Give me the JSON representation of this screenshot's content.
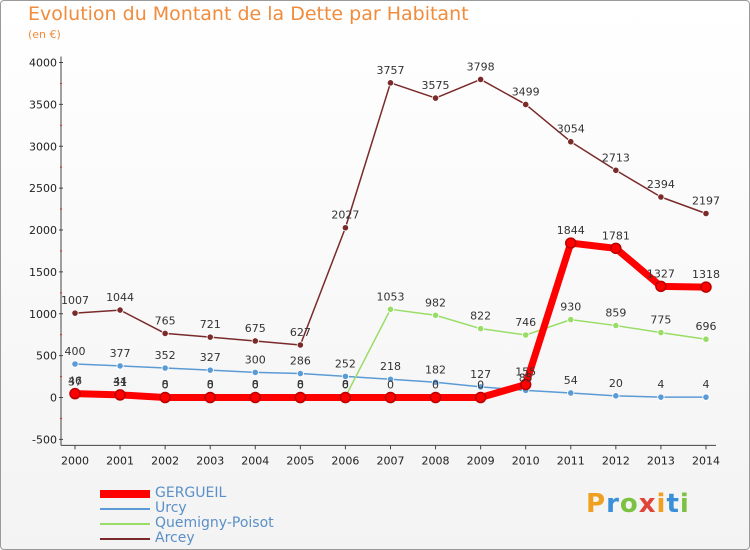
{
  "title": "Evolution du Montant de la Dette par Habitant",
  "subtitle": "(en €)",
  "brand": "Proxiti",
  "chart_data": {
    "type": "line",
    "x": [
      "2000",
      "2001",
      "2002",
      "2003",
      "2004",
      "2005",
      "2006",
      "2007",
      "2008",
      "2009",
      "2010",
      "2011",
      "2012",
      "2013",
      "2014"
    ],
    "ylim": [
      -500,
      4000
    ],
    "yticks": [
      "-500",
      "0",
      "500",
      "1000",
      "1500",
      "2000",
      "2500",
      "3000",
      "3500",
      "4000"
    ],
    "grid": false,
    "legend_position": "bottom-left",
    "series": [
      {
        "name": "GERGUEIL",
        "color": "#ff0000",
        "values": [
          46,
          31,
          0,
          0,
          0,
          0,
          0,
          0,
          0,
          0,
          155,
          1844,
          1781,
          1327,
          1318
        ],
        "labels": [
          "46",
          "31",
          "0",
          "0",
          "0",
          "0",
          "0",
          "0",
          "0",
          "0",
          "155",
          "1844",
          "1781",
          "1327",
          "1318"
        ]
      },
      {
        "name": "Urcy",
        "color": "#5b9bd5",
        "values": [
          400,
          377,
          352,
          327,
          300,
          286,
          252,
          218,
          182,
          127,
          85,
          54,
          20,
          4,
          4
        ],
        "labels": [
          "400",
          "377",
          "352",
          "327",
          "300",
          "286",
          "252",
          "218",
          "182",
          "127",
          "85",
          "54",
          "20",
          "4",
          "4"
        ]
      },
      {
        "name": "Quemigny-Poisot",
        "color": "#99dd66",
        "values": [
          37,
          44,
          8,
          8,
          8,
          8,
          8,
          1053,
          982,
          822,
          746,
          930,
          859,
          775,
          696
        ],
        "labels": [
          "37",
          "44",
          "8",
          "8",
          "8",
          "8",
          "8",
          "1053",
          "982",
          "822",
          "746",
          "930",
          "859",
          "775",
          "696"
        ]
      },
      {
        "name": "Arcey",
        "color": "#7a2a2a",
        "values": [
          1007,
          1044,
          765,
          721,
          675,
          627,
          2027,
          3757,
          3575,
          3798,
          3499,
          3054,
          2713,
          2394,
          2197
        ],
        "labels": [
          "1007",
          "1044",
          "765",
          "721",
          "675",
          "627",
          "2027",
          "3757",
          "3575",
          "3798",
          "3499",
          "3054",
          "2713",
          "2394",
          "2197"
        ]
      }
    ]
  }
}
